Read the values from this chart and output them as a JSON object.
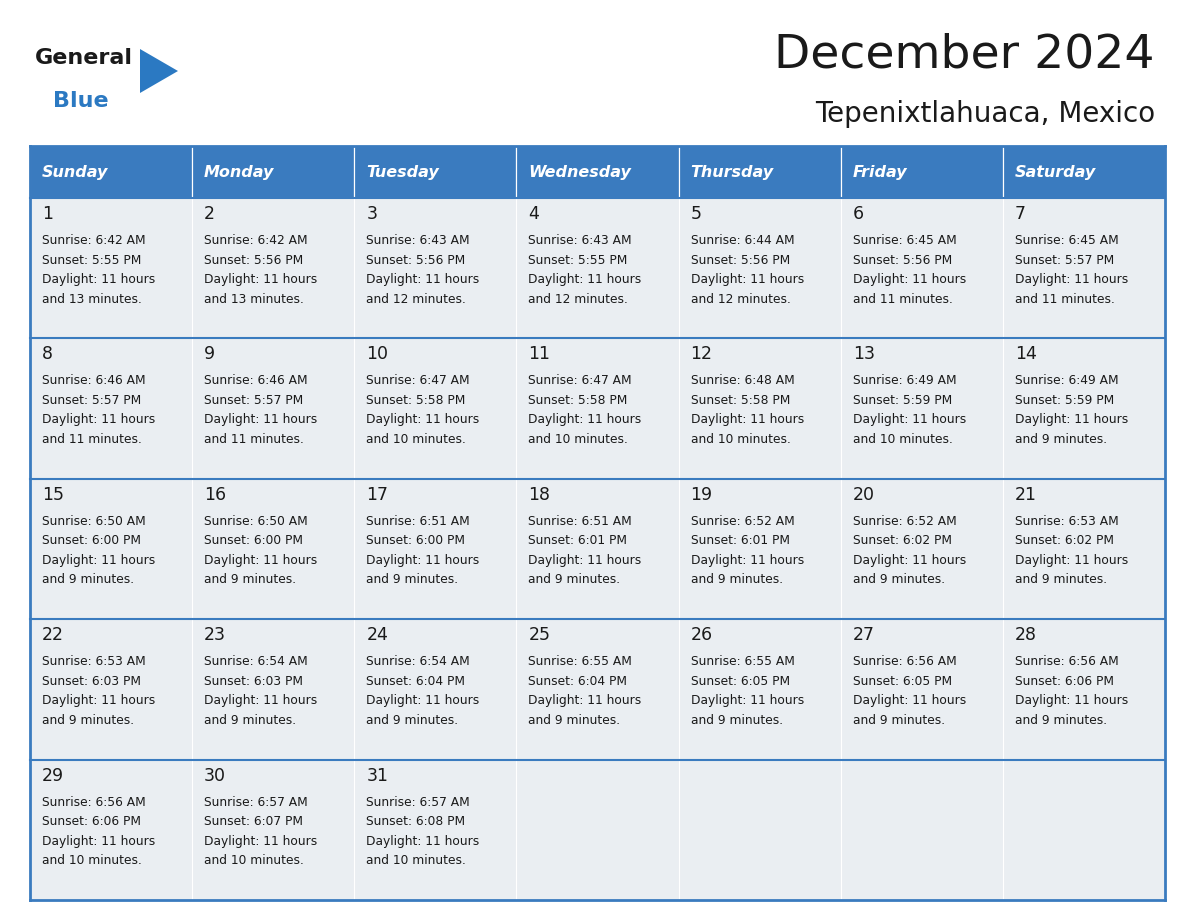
{
  "title": "December 2024",
  "subtitle": "Tepenixtlahuaca, Mexico",
  "days_of_week": [
    "Sunday",
    "Monday",
    "Tuesday",
    "Wednesday",
    "Thursday",
    "Friday",
    "Saturday"
  ],
  "header_bg": "#3A7BBF",
  "header_text": "#FFFFFF",
  "row_bg": "#EAEEF2",
  "border_color": "#3A7BBF",
  "title_color": "#1a1a1a",
  "subtitle_color": "#1a1a1a",
  "cell_text_color": "#1a1a1a",
  "day_num_color": "#1a1a1a",
  "logo_black": "#1a1a1a",
  "logo_blue": "#2B79C2",
  "calendar": [
    [
      {
        "day": 1,
        "sunrise": "6:42 AM",
        "sunset": "5:55 PM",
        "daylight_hours": 11,
        "daylight_minutes": 13
      },
      {
        "day": 2,
        "sunrise": "6:42 AM",
        "sunset": "5:56 PM",
        "daylight_hours": 11,
        "daylight_minutes": 13
      },
      {
        "day": 3,
        "sunrise": "6:43 AM",
        "sunset": "5:56 PM",
        "daylight_hours": 11,
        "daylight_minutes": 12
      },
      {
        "day": 4,
        "sunrise": "6:43 AM",
        "sunset": "5:55 PM",
        "daylight_hours": 11,
        "daylight_minutes": 12
      },
      {
        "day": 5,
        "sunrise": "6:44 AM",
        "sunset": "5:56 PM",
        "daylight_hours": 11,
        "daylight_minutes": 12
      },
      {
        "day": 6,
        "sunrise": "6:45 AM",
        "sunset": "5:56 PM",
        "daylight_hours": 11,
        "daylight_minutes": 11
      },
      {
        "day": 7,
        "sunrise": "6:45 AM",
        "sunset": "5:57 PM",
        "daylight_hours": 11,
        "daylight_minutes": 11
      }
    ],
    [
      {
        "day": 8,
        "sunrise": "6:46 AM",
        "sunset": "5:57 PM",
        "daylight_hours": 11,
        "daylight_minutes": 11
      },
      {
        "day": 9,
        "sunrise": "6:46 AM",
        "sunset": "5:57 PM",
        "daylight_hours": 11,
        "daylight_minutes": 11
      },
      {
        "day": 10,
        "sunrise": "6:47 AM",
        "sunset": "5:58 PM",
        "daylight_hours": 11,
        "daylight_minutes": 10
      },
      {
        "day": 11,
        "sunrise": "6:47 AM",
        "sunset": "5:58 PM",
        "daylight_hours": 11,
        "daylight_minutes": 10
      },
      {
        "day": 12,
        "sunrise": "6:48 AM",
        "sunset": "5:58 PM",
        "daylight_hours": 11,
        "daylight_minutes": 10
      },
      {
        "day": 13,
        "sunrise": "6:49 AM",
        "sunset": "5:59 PM",
        "daylight_hours": 11,
        "daylight_minutes": 10
      },
      {
        "day": 14,
        "sunrise": "6:49 AM",
        "sunset": "5:59 PM",
        "daylight_hours": 11,
        "daylight_minutes": 9
      }
    ],
    [
      {
        "day": 15,
        "sunrise": "6:50 AM",
        "sunset": "6:00 PM",
        "daylight_hours": 11,
        "daylight_minutes": 9
      },
      {
        "day": 16,
        "sunrise": "6:50 AM",
        "sunset": "6:00 PM",
        "daylight_hours": 11,
        "daylight_minutes": 9
      },
      {
        "day": 17,
        "sunrise": "6:51 AM",
        "sunset": "6:00 PM",
        "daylight_hours": 11,
        "daylight_minutes": 9
      },
      {
        "day": 18,
        "sunrise": "6:51 AM",
        "sunset": "6:01 PM",
        "daylight_hours": 11,
        "daylight_minutes": 9
      },
      {
        "day": 19,
        "sunrise": "6:52 AM",
        "sunset": "6:01 PM",
        "daylight_hours": 11,
        "daylight_minutes": 9
      },
      {
        "day": 20,
        "sunrise": "6:52 AM",
        "sunset": "6:02 PM",
        "daylight_hours": 11,
        "daylight_minutes": 9
      },
      {
        "day": 21,
        "sunrise": "6:53 AM",
        "sunset": "6:02 PM",
        "daylight_hours": 11,
        "daylight_minutes": 9
      }
    ],
    [
      {
        "day": 22,
        "sunrise": "6:53 AM",
        "sunset": "6:03 PM",
        "daylight_hours": 11,
        "daylight_minutes": 9
      },
      {
        "day": 23,
        "sunrise": "6:54 AM",
        "sunset": "6:03 PM",
        "daylight_hours": 11,
        "daylight_minutes": 9
      },
      {
        "day": 24,
        "sunrise": "6:54 AM",
        "sunset": "6:04 PM",
        "daylight_hours": 11,
        "daylight_minutes": 9
      },
      {
        "day": 25,
        "sunrise": "6:55 AM",
        "sunset": "6:04 PM",
        "daylight_hours": 11,
        "daylight_minutes": 9
      },
      {
        "day": 26,
        "sunrise": "6:55 AM",
        "sunset": "6:05 PM",
        "daylight_hours": 11,
        "daylight_minutes": 9
      },
      {
        "day": 27,
        "sunrise": "6:56 AM",
        "sunset": "6:05 PM",
        "daylight_hours": 11,
        "daylight_minutes": 9
      },
      {
        "day": 28,
        "sunrise": "6:56 AM",
        "sunset": "6:06 PM",
        "daylight_hours": 11,
        "daylight_minutes": 9
      }
    ],
    [
      {
        "day": 29,
        "sunrise": "6:56 AM",
        "sunset": "6:06 PM",
        "daylight_hours": 11,
        "daylight_minutes": 10
      },
      {
        "day": 30,
        "sunrise": "6:57 AM",
        "sunset": "6:07 PM",
        "daylight_hours": 11,
        "daylight_minutes": 10
      },
      {
        "day": 31,
        "sunrise": "6:57 AM",
        "sunset": "6:08 PM",
        "daylight_hours": 11,
        "daylight_minutes": 10
      },
      null,
      null,
      null,
      null
    ]
  ]
}
